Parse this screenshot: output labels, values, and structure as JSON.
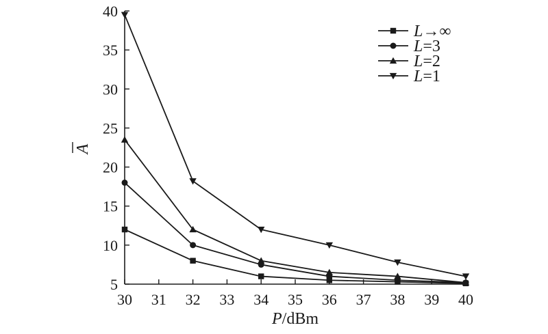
{
  "chart_data": {
    "type": "line",
    "title": "",
    "xlabel": {
      "var": "P",
      "unit": "/dBm"
    },
    "ylabel": "A",
    "xlim": [
      30,
      40
    ],
    "ylim": [
      5,
      40
    ],
    "xticks": [
      "30",
      "31",
      "32",
      "33",
      "34",
      "35",
      "36",
      "37",
      "38",
      "39",
      "40"
    ],
    "yticks": [
      "5",
      "10",
      "15",
      "20",
      "25",
      "30",
      "35",
      "40"
    ],
    "x": [
      30,
      32,
      34,
      36,
      38,
      40
    ],
    "series": [
      {
        "name": "L→∞",
        "var": "L",
        "rest": "→∞",
        "marker": "square",
        "values": [
          12.0,
          8.0,
          6.0,
          5.5,
          5.3,
          5.1
        ]
      },
      {
        "name": "L=3",
        "var": "L",
        "rest": "=3",
        "marker": "circle",
        "values": [
          18.0,
          10.0,
          7.5,
          6.0,
          5.5,
          5.2
        ]
      },
      {
        "name": "L=2",
        "var": "L",
        "rest": "=2",
        "marker": "triangle-up",
        "values": [
          23.5,
          12.0,
          8.0,
          6.5,
          6.0,
          5.2
        ]
      },
      {
        "name": "L=1",
        "var": "L",
        "rest": "=1",
        "marker": "triangle-down",
        "values": [
          39.5,
          18.2,
          12.0,
          10.0,
          7.8,
          6.0
        ]
      }
    ],
    "legend_position": "top-right",
    "grid": false,
    "line_color": "#1a1a1a"
  }
}
